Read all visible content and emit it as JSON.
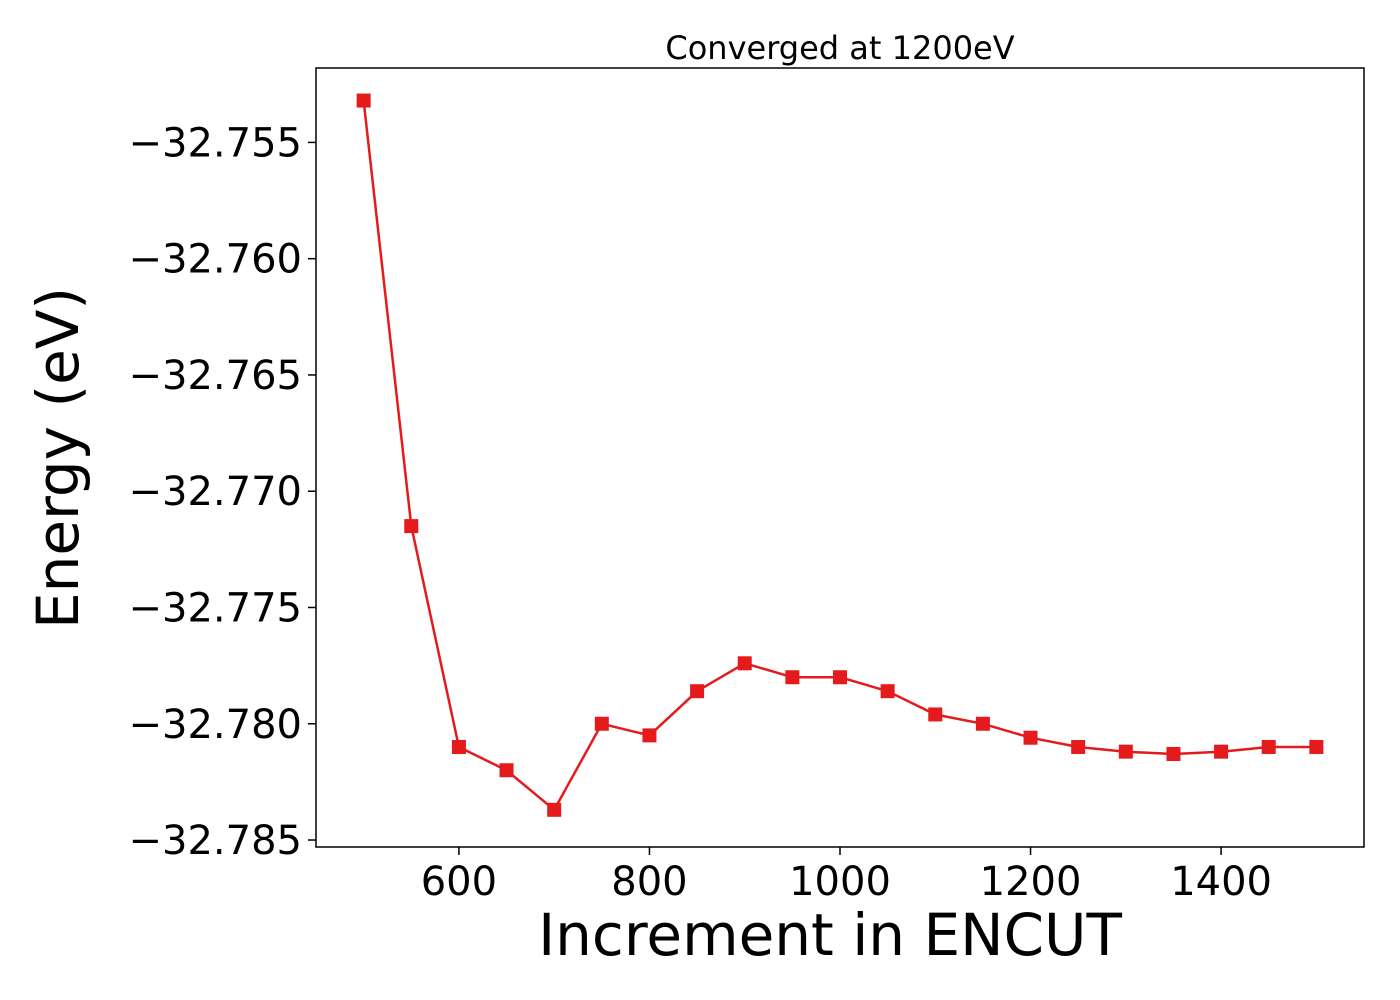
{
  "chart_data": {
    "type": "line",
    "title": "Converged at 1200eV",
    "xlabel": "Increment in ENCUT",
    "ylabel": "Energy (eV)",
    "xlim": [
      450,
      1550
    ],
    "ylim": [
      -32.7853,
      -32.7518
    ],
    "x_ticks": [
      600,
      800,
      1000,
      1200,
      1400
    ],
    "y_ticks": [
      -32.755,
      -32.76,
      -32.765,
      -32.77,
      -32.775,
      -32.78,
      -32.785
    ],
    "y_tick_labels": [
      "−32.755",
      "−32.760",
      "−32.765",
      "−32.770",
      "−32.775",
      "−32.780",
      "−32.785"
    ],
    "grid": false,
    "series": [
      {
        "color": "#e41a1c",
        "marker": "square",
        "x": [
          500,
          550,
          600,
          650,
          700,
          750,
          800,
          850,
          900,
          950,
          1000,
          1050,
          1100,
          1150,
          1200,
          1250,
          1300,
          1350,
          1400,
          1450,
          1500
        ],
        "y": [
          -32.7532,
          -32.7715,
          -32.781,
          -32.782,
          -32.7837,
          -32.78,
          -32.7805,
          -32.7786,
          -32.7774,
          -32.778,
          -32.778,
          -32.7786,
          -32.7796,
          -32.78,
          -32.7806,
          -32.781,
          -32.7812,
          -32.7813,
          -32.7812,
          -32.781,
          -32.781
        ]
      }
    ]
  }
}
